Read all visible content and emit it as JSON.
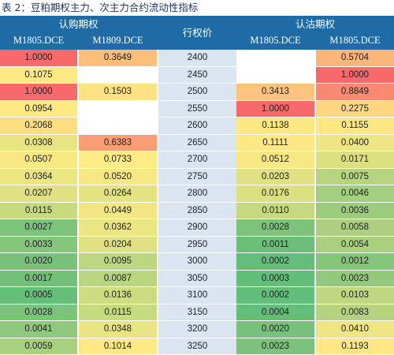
{
  "caption": "表 2：豆粕期权主力、次主力合约流动性指标",
  "header": {
    "call_group": "认购期权",
    "put_group": "认沽期权",
    "strike_label": "行权价",
    "call_main": "M1805.DCE",
    "call_sub": "M1809.DCE",
    "put_main": "M1805.DCE",
    "put_sub": "M1805.DCE"
  },
  "rows": [
    {
      "strike": "2400",
      "call_main": "1.0000",
      "call_sub": "0.3649",
      "put_main": "",
      "put_sub": "0.5704",
      "colors": [
        "#f8696b",
        "#fcbf7b",
        "#ffffff",
        "#fcb579"
      ]
    },
    {
      "strike": "2450",
      "call_main": "0.1075",
      "call_sub": "",
      "put_main": "",
      "put_sub": "1.0000",
      "colors": [
        "#ffe984",
        "#ffffff",
        "#ffffff",
        "#f8696b"
      ]
    },
    {
      "strike": "2500",
      "call_main": "1.0000",
      "call_sub": "0.1503",
      "put_main": "0.3413",
      "put_sub": "0.8849",
      "colors": [
        "#f8696b",
        "#ffe283",
        "#fdc27c",
        "#f98a71"
      ]
    },
    {
      "strike": "2550",
      "call_main": "0.0954",
      "call_sub": "",
      "put_main": "1.0000",
      "put_sub": "0.2275",
      "colors": [
        "#fee983",
        "#ffffff",
        "#f8696b",
        "#fed780"
      ]
    },
    {
      "strike": "2600",
      "call_main": "0.2068",
      "call_sub": "",
      "put_main": "0.1138",
      "put_sub": "0.1155",
      "colors": [
        "#ffde82",
        "#ffffff",
        "#ffe884",
        "#ffe884"
      ]
    },
    {
      "strike": "2650",
      "call_main": "0.0308",
      "call_sub": "0.6383",
      "put_main": "0.1111",
      "put_sub": "0.0400",
      "colors": [
        "#e7e482",
        "#f99e74",
        "#ffe884",
        "#eee583"
      ]
    },
    {
      "strike": "2700",
      "call_main": "0.0507",
      "call_sub": "0.0733",
      "put_main": "0.0512",
      "put_sub": "0.0171",
      "colors": [
        "#f7e883",
        "#fdeb84",
        "#f7e883",
        "#dde081"
      ]
    },
    {
      "strike": "2750",
      "call_main": "0.0364",
      "call_sub": "0.0520",
      "put_main": "0.0203",
      "put_sub": "0.0075",
      "colors": [
        "#ebe582",
        "#f7e883",
        "#dfe182",
        "#b7d57f"
      ]
    },
    {
      "strike": "2800",
      "call_main": "0.0207",
      "call_sub": "0.0264",
      "put_main": "0.0176",
      "put_sub": "0.0046",
      "colors": [
        "#dfe182",
        "#e3e382",
        "#dce081",
        "#a4cf7e"
      ]
    },
    {
      "strike": "2850",
      "call_main": "0.0115",
      "call_sub": "0.0449",
      "put_main": "0.0110",
      "put_sub": "0.0036",
      "colors": [
        "#c6da80",
        "#f1e683",
        "#c5da80",
        "#9ccd7e"
      ]
    },
    {
      "strike": "2900",
      "call_main": "0.0027",
      "call_sub": "0.0362",
      "put_main": "0.0028",
      "put_sub": "0.0058",
      "colors": [
        "#7dc37c",
        "#ebe582",
        "#7dc37c",
        "#adcf7f"
      ]
    },
    {
      "strike": "2950",
      "call_main": "0.0033",
      "call_sub": "0.0204",
      "put_main": "0.0011",
      "put_sub": "0.0054",
      "colors": [
        "#85c57c",
        "#dfe182",
        "#6dbe7b",
        "#a9d07e"
      ]
    },
    {
      "strike": "3000",
      "call_main": "0.0020",
      "call_sub": "0.0095",
      "put_main": "0.0002",
      "put_sub": "0.0012",
      "colors": [
        "#78c17c",
        "#bdd680",
        "#63be7b",
        "#85c57c"
      ]
    },
    {
      "strike": "3050",
      "call_main": "0.0017",
      "call_sub": "0.0087",
      "put_main": "0.0003",
      "put_sub": "0.0023",
      "colors": [
        "#73c07b",
        "#b9d580",
        "#64be7b",
        "#92c97d"
      ]
    },
    {
      "strike": "3100",
      "call_main": "0.0005",
      "call_sub": "0.0136",
      "put_main": "0.0002",
      "put_sub": "0.0103",
      "colors": [
        "#66be7b",
        "#cedc81",
        "#63be7b",
        "#c0d680"
      ]
    },
    {
      "strike": "3150",
      "call_main": "0.0028",
      "call_sub": "0.0115",
      "put_main": "0.0004",
      "put_sub": "0.0083",
      "colors": [
        "#7dc37c",
        "#c6da80",
        "#66be7b",
        "#b6d47f"
      ]
    },
    {
      "strike": "3200",
      "call_main": "0.0041",
      "call_sub": "0.0348",
      "put_main": "0.0020",
      "put_sub": "0.0410",
      "colors": [
        "#8ec97d",
        "#eae482",
        "#78c17c",
        "#efe583"
      ]
    },
    {
      "strike": "3250",
      "call_main": "0.0059",
      "call_sub": "0.1014",
      "put_main": "0.0023",
      "put_sub": "0.1193",
      "colors": [
        "#a7d07f",
        "#fee984",
        "#7cc27c",
        "#ffe884"
      ]
    }
  ]
}
